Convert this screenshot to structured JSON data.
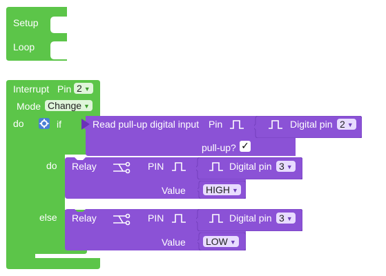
{
  "setup_block": {
    "label": "Setup"
  },
  "loop_block": {
    "label": "Loop"
  },
  "interrupt_block": {
    "title": "Interrupt",
    "pin_label": "Pin",
    "pin_value": "2",
    "mode_label": "Mode",
    "mode_value": "Change",
    "do_label": "do"
  },
  "if_block": {
    "if_label": "if",
    "do_label": "do",
    "else_label": "else"
  },
  "read_block": {
    "label": "Read pull-up digital input",
    "pin_label": "Pin",
    "pullup_label": "pull-up?",
    "pullup_checked": "✓",
    "digital_pin_label": "Digital pin",
    "digital_pin_value": "2"
  },
  "relay_do": {
    "label": "Relay",
    "pin_label": "PIN",
    "value_label": "Value",
    "digital_pin_label": "Digital pin",
    "digital_pin_value": "3",
    "value": "HIGH"
  },
  "relay_else": {
    "label": "Relay",
    "pin_label": "PIN",
    "value_label": "Value",
    "digital_pin_label": "Digital pin",
    "digital_pin_value": "3",
    "value": "LOW"
  },
  "dropdown_arrow": "▼",
  "icons": [
    "gear-icon",
    "relay-icon",
    "pulse-icon"
  ],
  "colors": {
    "green": "#5cc549",
    "purple": "#8b52d6",
    "blue": "#4a7fd6"
  }
}
